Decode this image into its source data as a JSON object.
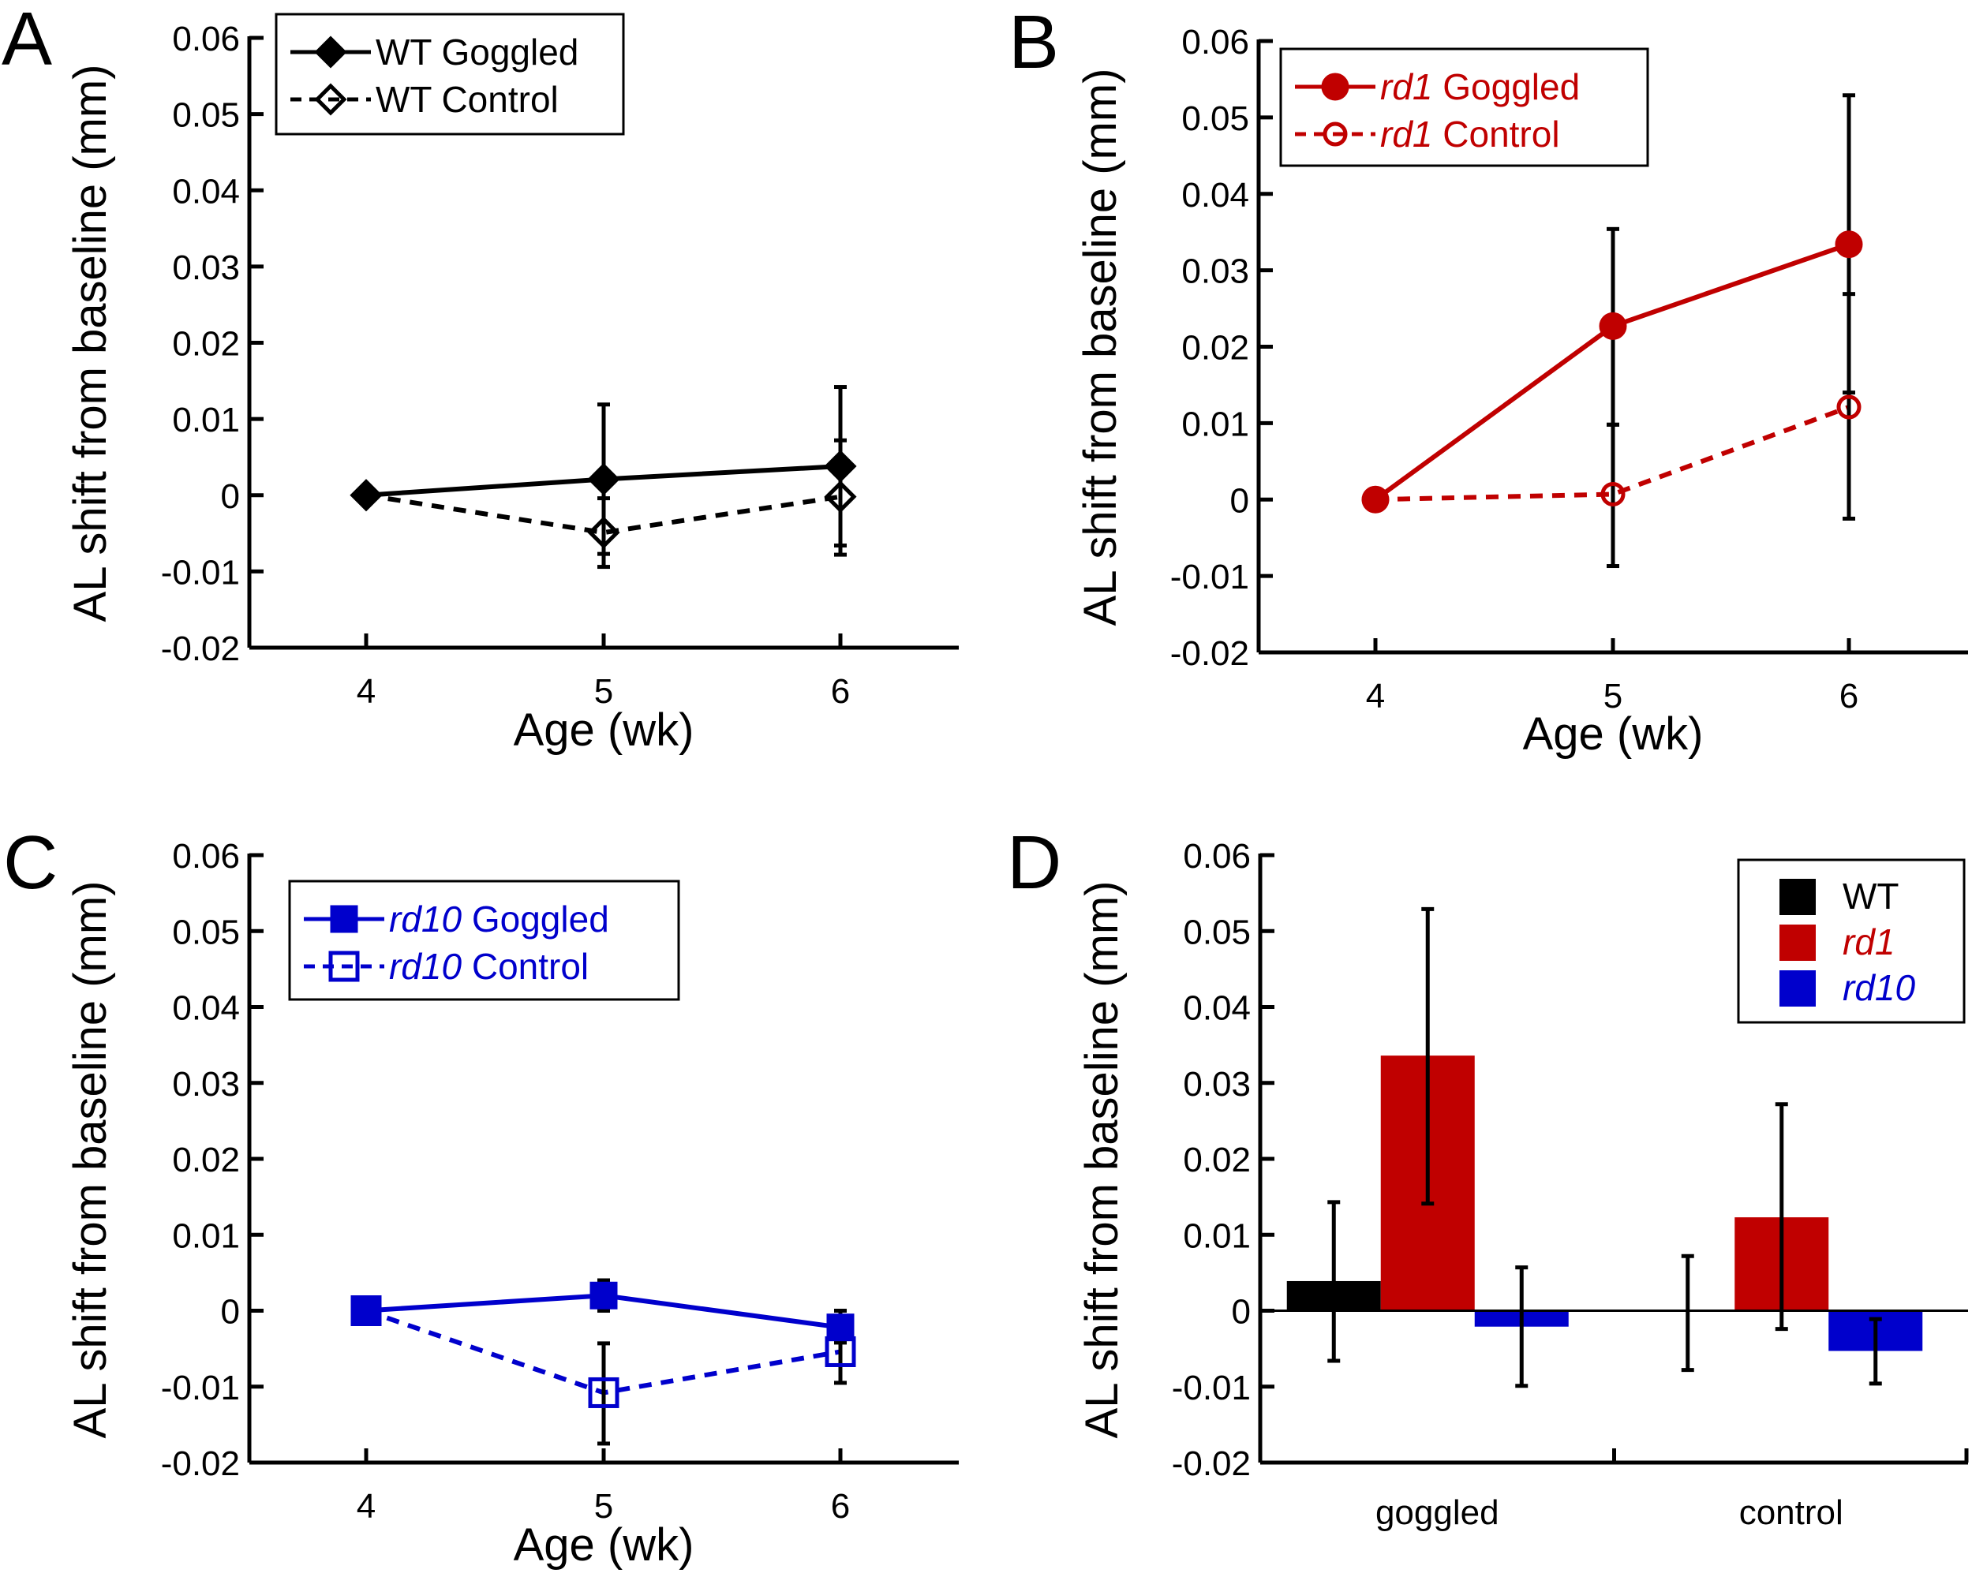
{
  "colors": {
    "wt": "#000000",
    "rd1": "#C00000",
    "rd10": "#0000CC",
    "errorbar": "#000000",
    "axis": "#000000"
  },
  "chart_data": [
    {
      "panel": "A",
      "type": "line",
      "ylabel": "AL shift from baseline (mm)",
      "xlabel": "Age (wk)",
      "x": [
        4,
        5,
        6
      ],
      "x_tick_labels": [
        "4",
        "5",
        "6"
      ],
      "xlim": [
        3.5,
        6.5
      ],
      "ylim": [
        -0.02,
        0.06
      ],
      "y_tick_labels": [
        "0.06",
        "0.05",
        "0.04",
        "0.03",
        "0.02",
        "0.01",
        "0",
        "-0.01",
        "-0.02"
      ],
      "y_ticks": [
        0.06,
        0.05,
        0.04,
        0.03,
        0.02,
        0.01,
        0,
        -0.01,
        -0.02
      ],
      "legend_position": "top-left",
      "series": [
        {
          "name": "WT Goggled",
          "name_italic": "",
          "name_plain": "WT Goggled",
          "color_key": "wt",
          "line": "solid",
          "marker": "diamond-filled",
          "values": [
            0,
            0.0021,
            0.0038
          ],
          "err_upper": [
            null,
            0.0119,
            0.0142
          ],
          "err_lower": [
            null,
            -0.0077,
            -0.0066
          ]
        },
        {
          "name": "WT Control",
          "name_italic": "",
          "name_plain": "WT Control",
          "color_key": "wt",
          "line": "dashed",
          "marker": "diamond-open",
          "values": [
            0,
            -0.0049,
            -0.0002
          ],
          "err_upper": [
            null,
            -0.0004,
            0.0072
          ],
          "err_lower": [
            null,
            -0.0094,
            -0.0078
          ]
        }
      ]
    },
    {
      "panel": "B",
      "type": "line",
      "ylabel": "AL shift from baseline (mm)",
      "xlabel": "Age (wk)",
      "x": [
        4,
        5,
        6
      ],
      "x_tick_labels": [
        "4",
        "5",
        "6"
      ],
      "xlim": [
        3.5,
        6.5
      ],
      "ylim": [
        -0.02,
        0.06
      ],
      "y_tick_labels": [
        "0.06",
        "0.05",
        "0.04",
        "0.03",
        "0.02",
        "0.01",
        "0",
        "-0.01",
        "-0.02"
      ],
      "y_ticks": [
        0.06,
        0.05,
        0.04,
        0.03,
        0.02,
        0.01,
        0,
        -0.01,
        -0.02
      ],
      "legend_position": "top-left",
      "series": [
        {
          "name": "rd1 Goggled",
          "name_italic": "rd1",
          "name_plain": " Goggled",
          "color_key": "rd1",
          "line": "solid",
          "marker": "circle-filled",
          "values": [
            0,
            0.0227,
            0.0334
          ],
          "err_upper": [
            null,
            0.0354,
            0.0529
          ],
          "err_lower": [
            null,
            0.0098,
            0.014
          ]
        },
        {
          "name": "rd1 Control",
          "name_italic": "rd1",
          "name_plain": " Control",
          "color_key": "rd1",
          "line": "dashed",
          "marker": "circle-open",
          "values": [
            0,
            0.0007,
            0.0121
          ],
          "err_upper": [
            null,
            0.0098,
            0.0269
          ],
          "err_lower": [
            null,
            -0.0087,
            -0.0025
          ]
        }
      ]
    },
    {
      "panel": "C",
      "type": "line",
      "ylabel": "AL shift from baseline (mm)",
      "xlabel": "Age (wk)",
      "x": [
        4,
        5,
        6
      ],
      "x_tick_labels": [
        "4",
        "5",
        "6"
      ],
      "xlim": [
        3.5,
        6.5
      ],
      "ylim": [
        -0.02,
        0.06
      ],
      "y_tick_labels": [
        "0.06",
        "0.05",
        "0.04",
        "0.03",
        "0.02",
        "0.01",
        "0",
        "-0.01",
        "-0.02"
      ],
      "y_ticks": [
        0.06,
        0.05,
        0.04,
        0.03,
        0.02,
        0.01,
        0,
        -0.01,
        -0.02
      ],
      "legend_position": "top-left",
      "series": [
        {
          "name": "rd10 Goggled",
          "name_italic": "rd10",
          "name_plain": " Goggled",
          "color_key": "rd10",
          "line": "solid",
          "marker": "square-filled",
          "values": [
            0,
            0.002,
            -0.0022
          ],
          "err_upper": [
            null,
            0.004,
            0.0
          ],
          "err_lower": [
            null,
            0.0,
            -0.0042
          ]
        },
        {
          "name": "rd10 Control",
          "name_italic": "rd10",
          "name_plain": " Control",
          "color_key": "rd10",
          "line": "dashed",
          "marker": "square-open",
          "values": [
            0,
            -0.0108,
            -0.0054
          ],
          "err_upper": [
            null,
            -0.0043,
            -0.0015
          ],
          "err_lower": [
            null,
            -0.0175,
            -0.0095
          ]
        }
      ]
    },
    {
      "panel": "D",
      "type": "bar",
      "ylabel": "AL shift from baseline (mm)",
      "xlabel": "",
      "categories": [
        "goggled",
        "control"
      ],
      "ylim": [
        -0.02,
        0.06
      ],
      "y_tick_labels": [
        "0.06",
        "0.05",
        "0.04",
        "0.03",
        "0.02",
        "0.01",
        "0",
        "-0.01",
        "-0.02"
      ],
      "y_ticks": [
        0.06,
        0.05,
        0.04,
        0.03,
        0.02,
        0.01,
        0,
        -0.01,
        -0.02
      ],
      "legend_position": "top-right",
      "series": [
        {
          "name": "WT",
          "italic": false,
          "color_key": "wt",
          "values": [
            0.0039,
            -0.0001
          ],
          "err_upper": [
            0.0143,
            0.0072
          ],
          "err_lower": [
            -0.0066,
            -0.0078
          ]
        },
        {
          "name": "rd1",
          "italic": true,
          "color_key": "rd1",
          "values": [
            0.0336,
            0.0123
          ],
          "err_upper": [
            0.0529,
            0.0272
          ],
          "err_lower": [
            0.0141,
            -0.0024
          ]
        },
        {
          "name": "rd10",
          "italic": true,
          "color_key": "rd10",
          "values": [
            -0.0021,
            -0.0053
          ],
          "err_upper": [
            0.0057,
            -0.0011
          ],
          "err_lower": [
            -0.0099,
            -0.0096
          ]
        }
      ]
    }
  ]
}
